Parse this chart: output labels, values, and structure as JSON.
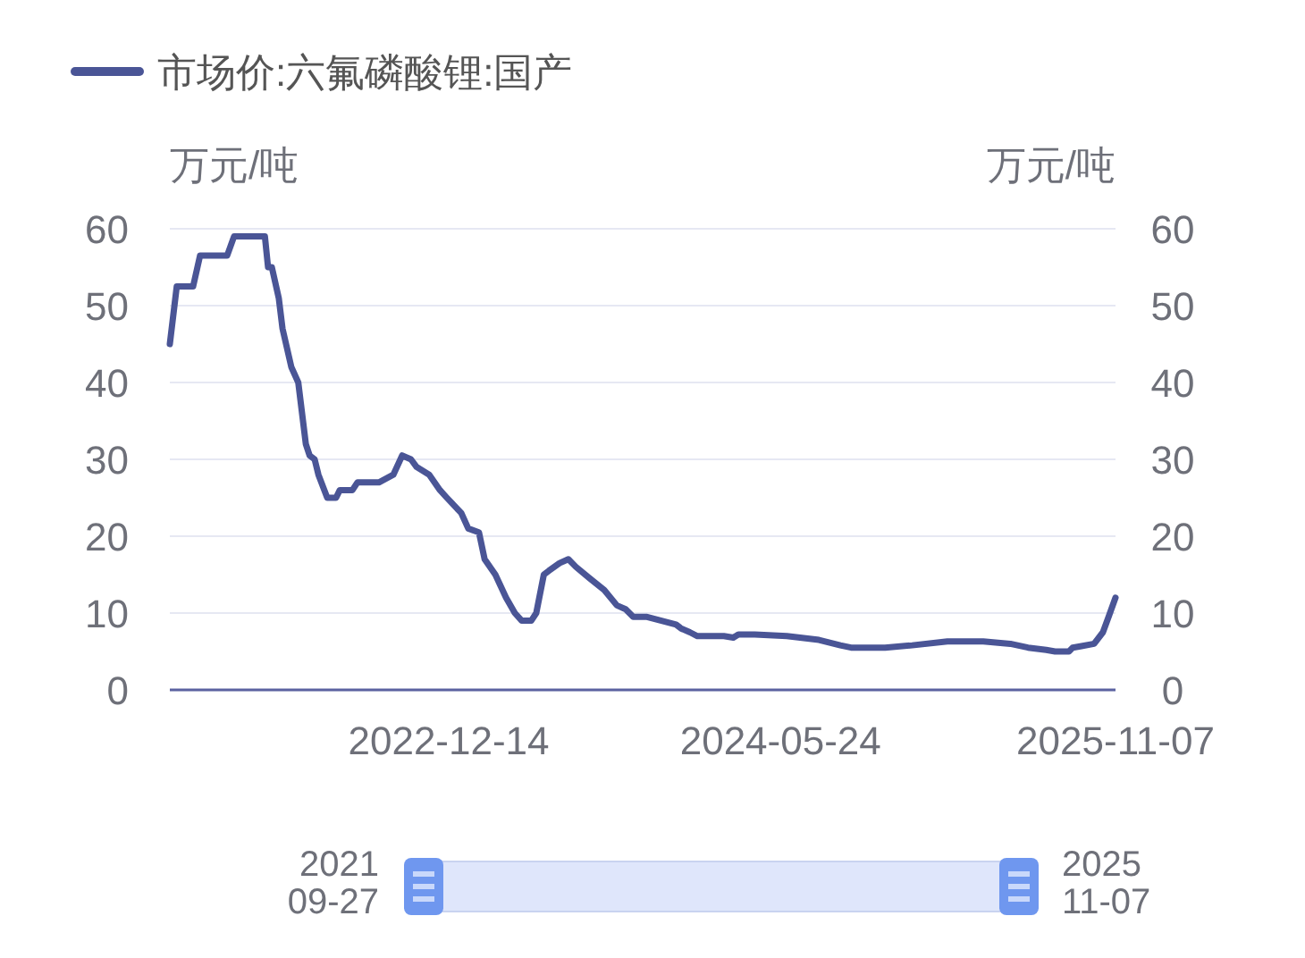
{
  "chart_data": {
    "type": "line",
    "ylabel": "万元/吨",
    "y2label": "万元/吨",
    "xlim": [
      "2021-09-27",
      "2025-11-07"
    ],
    "xticks": [
      "2022-12-14",
      "2024-05-24",
      "2025-11-07"
    ],
    "ylim": [
      0,
      60
    ],
    "yticks": [
      0,
      10,
      20,
      30,
      40,
      50,
      60
    ],
    "y2lim": [
      0,
      60
    ],
    "y2ticks": [
      0,
      10,
      20,
      30,
      40,
      50,
      60
    ],
    "grid": "y",
    "legend": "top left",
    "line_style": "solid",
    "annotations": [
      "2021\n09-27",
      "2025\n11-07"
    ],
    "series": [
      {
        "name": "市场价:六氟磷酸锂:国产",
        "color": "#4a5596",
        "x": [
          "2021-09-27",
          "2021-10-08",
          "2021-11-03",
          "2021-11-14",
          "2021-12-27",
          "2022-01-07",
          "2022-02-25",
          "2022-03-02",
          "2022-03-08",
          "2022-03-19",
          "2022-03-25",
          "2022-04-08",
          "2022-04-19",
          "2022-05-01",
          "2022-05-07",
          "2022-05-15",
          "2022-05-21",
          "2022-06-04",
          "2022-06-18",
          "2022-06-24",
          "2022-07-14",
          "2022-07-22",
          "2022-08-25",
          "2022-09-17",
          "2022-10-01",
          "2022-10-15",
          "2022-10-24",
          "2022-11-13",
          "2022-11-30",
          "2022-12-11",
          "2023-01-03",
          "2023-01-14",
          "2023-01-31",
          "2023-02-09",
          "2023-02-26",
          "2023-03-15",
          "2023-03-29",
          "2023-04-09",
          "2023-04-24",
          "2023-05-02",
          "2023-05-14",
          "2023-05-22",
          "2023-06-08",
          "2023-06-22",
          "2023-07-04",
          "2023-07-26",
          "2023-08-18",
          "2023-09-07",
          "2023-09-21",
          "2023-10-03",
          "2023-10-25",
          "2023-11-17",
          "2023-12-10",
          "2023-12-18",
          "2024-01-01",
          "2024-01-13",
          "2024-02-24",
          "2024-03-10",
          "2024-03-18",
          "2024-04-13",
          "2024-06-03",
          "2024-07-24",
          "2024-08-27",
          "2024-09-13",
          "2024-11-06",
          "2024-12-19",
          "2025-02-13",
          "2025-04-11",
          "2025-05-24",
          "2025-06-21",
          "2025-07-20",
          "2025-08-03",
          "2025-08-25",
          "2025-08-31",
          "2025-09-14",
          "2025-10-04",
          "2025-10-18",
          "2025-10-27",
          "2025-11-07"
        ],
        "values": [
          45,
          52.5,
          52.5,
          56.5,
          56.5,
          59,
          59,
          55,
          55,
          51,
          47,
          42,
          40,
          32,
          30.5,
          30,
          28,
          25,
          25,
          26,
          26,
          27,
          27,
          28,
          30.5,
          30,
          29,
          28,
          26,
          25,
          23,
          21,
          20.5,
          17,
          15,
          12,
          10,
          9,
          9,
          10,
          15,
          15.5,
          16.5,
          17,
          16,
          14.5,
          13,
          11,
          10.5,
          9.5,
          9.5,
          9,
          8.5,
          8,
          7.5,
          7,
          7,
          6.8,
          7.2,
          7.2,
          7,
          6.5,
          5.8,
          5.5,
          5.5,
          5.8,
          6.3,
          6.3,
          6,
          5.5,
          5.2,
          5,
          5,
          5.5,
          5.7,
          6,
          7.5,
          9.5,
          12
        ]
      }
    ]
  }
}
